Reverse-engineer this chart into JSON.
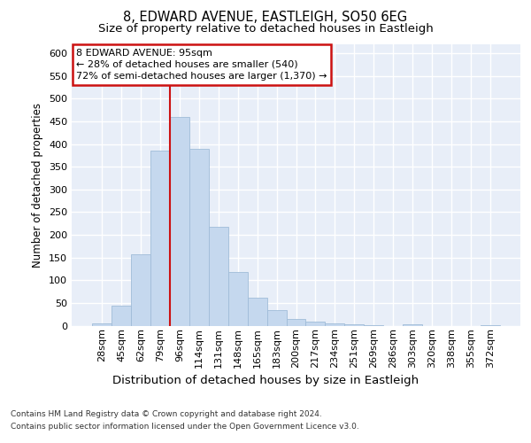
{
  "title_line1": "8, EDWARD AVENUE, EASTLEIGH, SO50 6EG",
  "title_line2": "Size of property relative to detached houses in Eastleigh",
  "xlabel": "Distribution of detached houses by size in Eastleigh",
  "ylabel": "Number of detached properties",
  "categories": [
    "28sqm",
    "45sqm",
    "62sqm",
    "79sqm",
    "96sqm",
    "114sqm",
    "131sqm",
    "148sqm",
    "165sqm",
    "183sqm",
    "200sqm",
    "217sqm",
    "234sqm",
    "251sqm",
    "269sqm",
    "286sqm",
    "303sqm",
    "320sqm",
    "338sqm",
    "355sqm",
    "372sqm"
  ],
  "values": [
    4,
    43,
    157,
    385,
    460,
    390,
    217,
    118,
    62,
    35,
    14,
    8,
    4,
    2,
    1,
    0,
    3,
    0,
    0,
    0,
    1
  ],
  "bar_color": "#c5d8ee",
  "bar_edge_color": "#a0bcd8",
  "vline_color": "#cc1111",
  "vline_index": 4,
  "annotation_line1": "8 EDWARD AVENUE: 95sqm",
  "annotation_line2": "← 28% of detached houses are smaller (540)",
  "annotation_line3": "72% of semi-detached houses are larger (1,370) →",
  "annotation_box_facecolor": "#ffffff",
  "annotation_box_edgecolor": "#cc1111",
  "ylim_max": 620,
  "yticks": [
    0,
    50,
    100,
    150,
    200,
    250,
    300,
    350,
    400,
    450,
    500,
    550,
    600
  ],
  "plot_bg_color": "#e8eef8",
  "grid_color": "#ffffff",
  "fig_bg_color": "#ffffff",
  "footer_line1": "Contains HM Land Registry data © Crown copyright and database right 2024.",
  "footer_line2": "Contains public sector information licensed under the Open Government Licence v3.0.",
  "title1_fontsize": 10.5,
  "title2_fontsize": 9.5,
  "ylabel_fontsize": 8.5,
  "xlabel_fontsize": 9.5,
  "tick_fontsize": 8,
  "annot_fontsize": 8,
  "footer_fontsize": 6.5
}
